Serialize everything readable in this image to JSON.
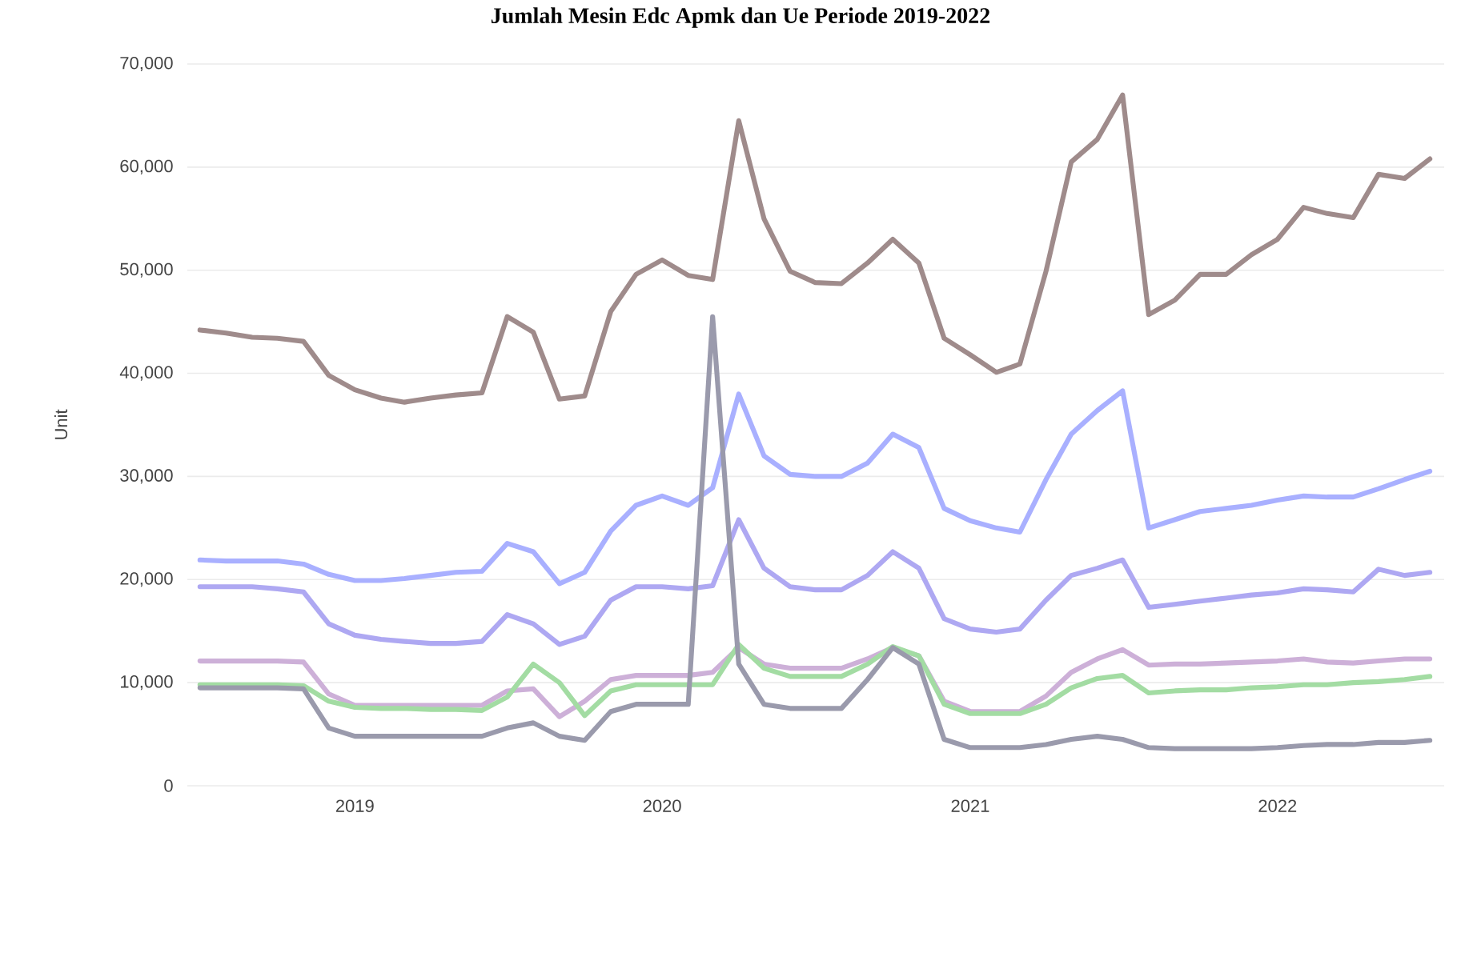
{
  "chart_data": {
    "type": "line",
    "title": "Jumlah Mesin Edc Apmk dan Ue Periode 2019-2022",
    "ylabel": "Unit",
    "x": [
      "2018-07",
      "2018-08",
      "2018-09",
      "2018-10",
      "2018-11",
      "2018-12",
      "2019-01",
      "2019-02",
      "2019-03",
      "2019-04",
      "2019-05",
      "2019-06",
      "2019-07",
      "2019-08",
      "2019-09",
      "2019-10",
      "2019-11",
      "2019-12",
      "2020-01",
      "2020-02",
      "2020-03",
      "2020-04",
      "2020-05",
      "2020-06",
      "2020-07",
      "2020-08",
      "2020-09",
      "2020-10",
      "2020-11",
      "2020-12",
      "2021-01",
      "2021-02",
      "2021-03",
      "2021-04",
      "2021-05",
      "2021-06",
      "2021-07",
      "2021-08",
      "2021-09",
      "2021-10",
      "2021-11",
      "2021-12",
      "2022-01",
      "2022-02",
      "2022-03",
      "2022-04",
      "2022-05",
      "2022-06",
      "2022-07"
    ],
    "series": [
      {
        "color": "#9f8b8b",
        "values": [
          44200,
          43900,
          43500,
          43400,
          43100,
          39800,
          38400,
          37600,
          37200,
          37600,
          37900,
          38100,
          45500,
          44000,
          37500,
          37800,
          46000,
          49600,
          51000,
          49500,
          49100,
          64500,
          55000,
          49900,
          48800,
          48700,
          50700,
          53000,
          50700,
          43400,
          41800,
          40100,
          40900,
          49900,
          60500,
          62700,
          67000,
          45700,
          47100,
          49600,
          49600,
          51500,
          53000,
          56100,
          55500,
          55100,
          59300,
          58900,
          60800
        ]
      },
      {
        "color": "#a9b0ff",
        "values": [
          21900,
          21800,
          21800,
          21800,
          21500,
          20500,
          19900,
          19900,
          20100,
          20400,
          20700,
          20800,
          23500,
          22700,
          19600,
          20700,
          24700,
          27200,
          28100,
          27200,
          28900,
          38000,
          32000,
          30200,
          30000,
          30000,
          31300,
          34100,
          32800,
          26900,
          25700,
          25000,
          24600,
          29700,
          34100,
          36400,
          38300,
          25000,
          25800,
          26600,
          26900,
          27200,
          27700,
          28100,
          28000,
          28000,
          28800,
          29700,
          30500
        ]
      },
      {
        "color": "#aea8f2",
        "values": [
          19300,
          19300,
          19300,
          19100,
          18800,
          15700,
          14600,
          14200,
          14000,
          13800,
          13800,
          14000,
          16600,
          15700,
          13700,
          14500,
          18000,
          19300,
          19300,
          19100,
          19400,
          25800,
          21100,
          19300,
          19000,
          19000,
          20400,
          22700,
          21100,
          16200,
          15200,
          14900,
          15200,
          18000,
          20400,
          21100,
          21900,
          17300,
          17600,
          17900,
          18200,
          18500,
          18700,
          19100,
          19000,
          18800,
          21000,
          20400,
          20700
        ]
      },
      {
        "color": "#cdb0d8",
        "values": [
          12100,
          12100,
          12100,
          12100,
          12000,
          8900,
          7800,
          7800,
          7800,
          7800,
          7800,
          7800,
          9200,
          9400,
          6700,
          8200,
          10300,
          10700,
          10700,
          10700,
          11000,
          13400,
          11800,
          11400,
          11400,
          11400,
          12300,
          13400,
          12600,
          8200,
          7200,
          7200,
          7200,
          8700,
          11000,
          12300,
          13200,
          11700,
          11800,
          11800,
          11900,
          12000,
          12100,
          12300,
          12000,
          11900,
          12100,
          12300,
          12300
        ]
      },
      {
        "color": "#a3dca3",
        "values": [
          9800,
          9800,
          9800,
          9800,
          9700,
          8200,
          7600,
          7500,
          7500,
          7400,
          7400,
          7300,
          8600,
          11800,
          10000,
          6800,
          9200,
          9800,
          9800,
          9800,
          9800,
          13700,
          11400,
          10600,
          10600,
          10600,
          11800,
          13500,
          12600,
          7900,
          7000,
          7000,
          7000,
          7900,
          9500,
          10400,
          10700,
          9000,
          9200,
          9300,
          9300,
          9500,
          9600,
          9800,
          9800,
          10000,
          10100,
          10300,
          10600
        ]
      },
      {
        "color": "#9a9aac",
        "values": [
          9500,
          9500,
          9500,
          9500,
          9400,
          5600,
          4800,
          4800,
          4800,
          4800,
          4800,
          4800,
          5600,
          6100,
          4800,
          4400,
          7200,
          7900,
          7900,
          7900,
          45500,
          11800,
          7900,
          7500,
          7500,
          7500,
          10300,
          13400,
          11800,
          4500,
          3700,
          3700,
          3700,
          4000,
          4500,
          4800,
          4500,
          3700,
          3600,
          3600,
          3600,
          3600,
          3700,
          3900,
          4000,
          4000,
          4200,
          4200,
          4400
        ]
      }
    ],
    "xlim": [
      "2018-06-16",
      "2022-07-18"
    ],
    "xticks": [
      {
        "value": "2019-01",
        "label": "2019"
      },
      {
        "value": "2020-01",
        "label": "2020"
      },
      {
        "value": "2021-01",
        "label": "2021"
      },
      {
        "value": "2022-01",
        "label": "2022"
      }
    ],
    "ylim": [
      0,
      70000
    ],
    "yticks": [
      0,
      {
        "value": 10000,
        "label": "10,000"
      },
      {
        "value": 20000,
        "label": "20,000"
      },
      {
        "value": 30000,
        "label": "30,000"
      },
      {
        "value": 40000,
        "label": "40,000"
      },
      {
        "value": 50000,
        "label": "50,000"
      },
      {
        "value": 60000,
        "label": "60,000"
      },
      {
        "value": 70000,
        "label": "70,000"
      }
    ],
    "grid": "y"
  }
}
